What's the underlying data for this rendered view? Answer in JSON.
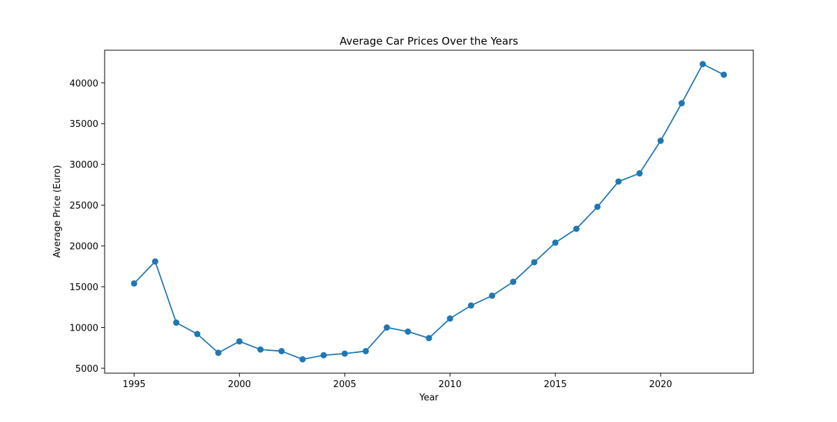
{
  "chart_data": {
    "type": "line",
    "title": "Average Car Prices Over the Years",
    "xlabel": "Year",
    "ylabel": "Average Price (Euro)",
    "xlim": [
      1993.6,
      2024.4
    ],
    "ylim": [
      4400,
      44000
    ],
    "xticks": [
      1995,
      2000,
      2005,
      2010,
      2015,
      2020
    ],
    "yticks": [
      5000,
      10000,
      15000,
      20000,
      25000,
      30000,
      35000,
      40000
    ],
    "grid": false,
    "series": [
      {
        "color": "#1f77b4",
        "marker": "circle",
        "x": [
          1995,
          1996,
          1997,
          1998,
          1999,
          2000,
          2001,
          2002,
          2003,
          2004,
          2005,
          2006,
          2007,
          2008,
          2009,
          2010,
          2011,
          2012,
          2013,
          2014,
          2015,
          2016,
          2017,
          2018,
          2019,
          2020,
          2021,
          2022,
          2023
        ],
        "y": [
          15400,
          18100,
          10600,
          9200,
          6900,
          8300,
          7300,
          7100,
          6100,
          6600,
          6800,
          7100,
          10000,
          9500,
          8700,
          11100,
          12700,
          13900,
          15600,
          18000,
          20400,
          22100,
          24800,
          27900,
          28900,
          32900,
          37500,
          42300,
          41000
        ]
      }
    ]
  }
}
